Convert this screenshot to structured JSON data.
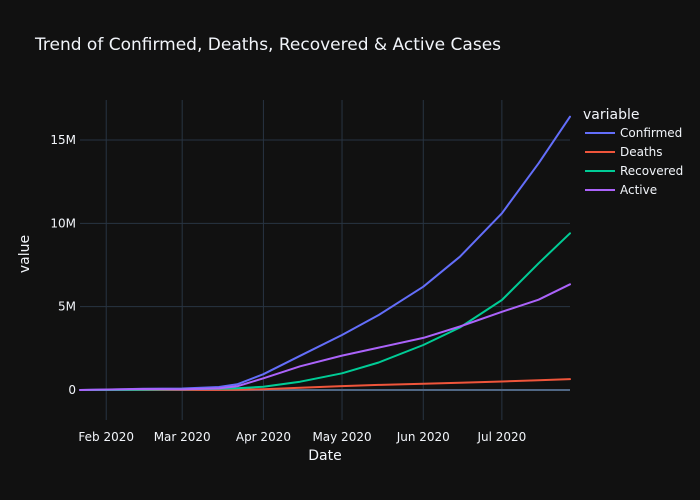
{
  "chart_data": {
    "type": "line",
    "title": "Trend of Confirmed, Deaths, Recovered & Active Cases",
    "xlabel": "Date",
    "ylabel": "value",
    "xlim": [
      "2020-01-22",
      "2020-07-27"
    ],
    "ylim": [
      -1800000,
      17400000
    ],
    "x_ticks": [
      {
        "date": "2020-02-01",
        "label": "Feb 2020"
      },
      {
        "date": "2020-03-01",
        "label": "Mar 2020"
      },
      {
        "date": "2020-04-01",
        "label": "Apr 2020"
      },
      {
        "date": "2020-05-01",
        "label": "May 2020"
      },
      {
        "date": "2020-06-01",
        "label": "Jun 2020"
      },
      {
        "date": "2020-07-01",
        "label": "Jul 2020"
      }
    ],
    "y_ticks": [
      {
        "value": 0,
        "label": "0"
      },
      {
        "value": 5000000,
        "label": "5M"
      },
      {
        "value": 10000000,
        "label": "10M"
      },
      {
        "value": 15000000,
        "label": "15M"
      }
    ],
    "grid": true,
    "legend": {
      "title": "variable",
      "position": "right"
    },
    "x": [
      "2020-01-22",
      "2020-02-15",
      "2020-03-01",
      "2020-03-15",
      "2020-03-22",
      "2020-04-01",
      "2020-04-15",
      "2020-05-01",
      "2020-05-15",
      "2020-06-01",
      "2020-06-15",
      "2020-07-01",
      "2020-07-15",
      "2020-07-27"
    ],
    "series": [
      {
        "name": "Confirmed",
        "color": "#636efa",
        "values": [
          550,
          70000,
          90000,
          180000,
          340000,
          950000,
          2050000,
          3300000,
          4500000,
          6200000,
          8000000,
          10600000,
          13600000,
          16400000
        ]
      },
      {
        "name": "Deaths",
        "color": "#ef553b",
        "values": [
          20,
          1500,
          3000,
          7000,
          15000,
          50000,
          130000,
          235000,
          305000,
          375000,
          440000,
          510000,
          580000,
          655000
        ]
      },
      {
        "name": "Recovered",
        "color": "#00cc96",
        "values": [
          30,
          10000,
          45000,
          80000,
          100000,
          200000,
          500000,
          1000000,
          1650000,
          2700000,
          3750000,
          5400000,
          7600000,
          9400000
        ]
      },
      {
        "name": "Active",
        "color": "#ab63fa",
        "values": [
          500,
          58000,
          42000,
          93000,
          225000,
          700000,
          1420000,
          2065000,
          2545000,
          3125000,
          3810000,
          4690000,
          5420000,
          6345000
        ]
      }
    ]
  }
}
